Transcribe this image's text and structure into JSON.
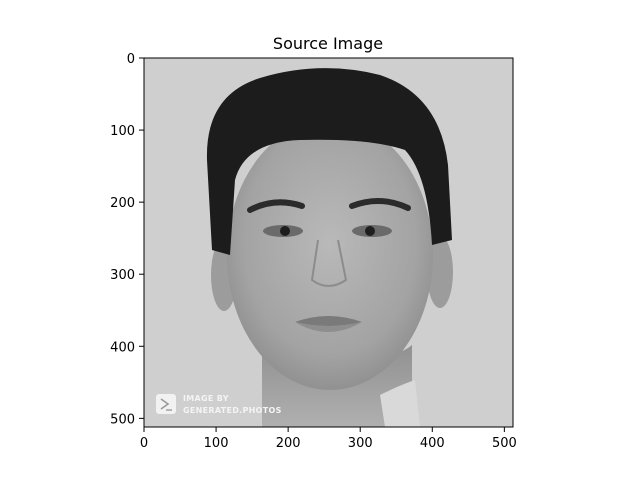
{
  "chart_data": {
    "type": "image",
    "title": "Source Image",
    "colormap": "grayscale",
    "image_subject": "portrait photo",
    "background_color": "#cfcfcf",
    "xlim": [
      0,
      512
    ],
    "ylim": [
      512,
      0
    ],
    "y_inverted": true,
    "x_ticks": [
      0,
      100,
      200,
      300,
      400,
      500
    ],
    "y_ticks": [
      0,
      100,
      200,
      300,
      400,
      500
    ],
    "grid": false,
    "watermark": {
      "line1": "IMAGE BY",
      "line2": "GENERATED.PHOTOS",
      "icon": "play-arrow-logo-icon"
    }
  }
}
